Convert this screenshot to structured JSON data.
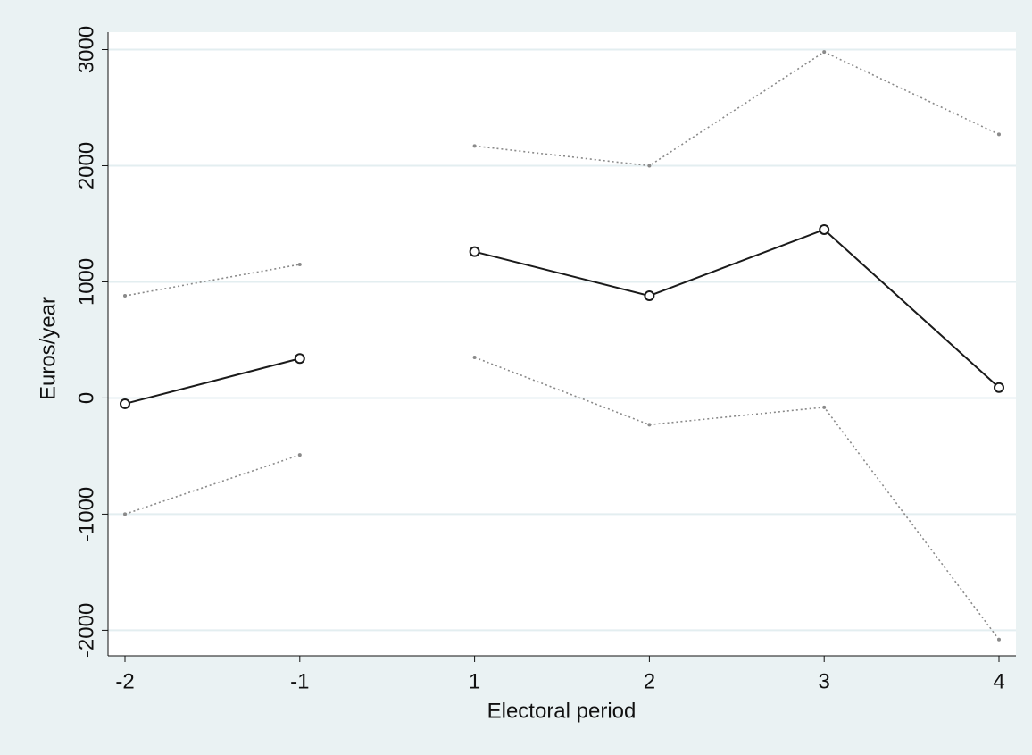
{
  "chart_data": {
    "type": "line",
    "x_label": "Electoral period",
    "y_label": "Euros/year",
    "categories": [
      "-2",
      "-1",
      "1",
      "2",
      "3",
      "4"
    ],
    "series": [
      {
        "color": "#8a8a8a",
        "line_style": "dotted",
        "marker": "dot",
        "values": [
          880,
          1150,
          null,
          null,
          null,
          null
        ]
      },
      {
        "color": "#8a8a8a",
        "line_style": "dotted",
        "marker": "dot",
        "values": [
          null,
          null,
          2170,
          2000,
          2980,
          2270
        ]
      },
      {
        "color": "#8a8a8a",
        "line_style": "dotted",
        "marker": "dot",
        "values": [
          -1000,
          -490,
          null,
          null,
          null,
          null
        ]
      },
      {
        "color": "#8a8a8a",
        "line_style": "dotted",
        "marker": "dot",
        "values": [
          null,
          null,
          350,
          -230,
          -80,
          -2080
        ]
      },
      {
        "color": "#1a1a1a",
        "line_style": "solid",
        "marker": "circle",
        "values": [
          -50,
          340,
          null,
          null,
          null,
          null
        ]
      },
      {
        "color": "#1a1a1a",
        "line_style": "solid",
        "marker": "circle",
        "values": [
          null,
          null,
          1260,
          880,
          1450,
          90
        ]
      }
    ],
    "ylim": [
      -2220,
      3150
    ],
    "yticks": [
      -2000,
      -1000,
      0,
      1000,
      2000,
      3000
    ],
    "grid": true
  }
}
